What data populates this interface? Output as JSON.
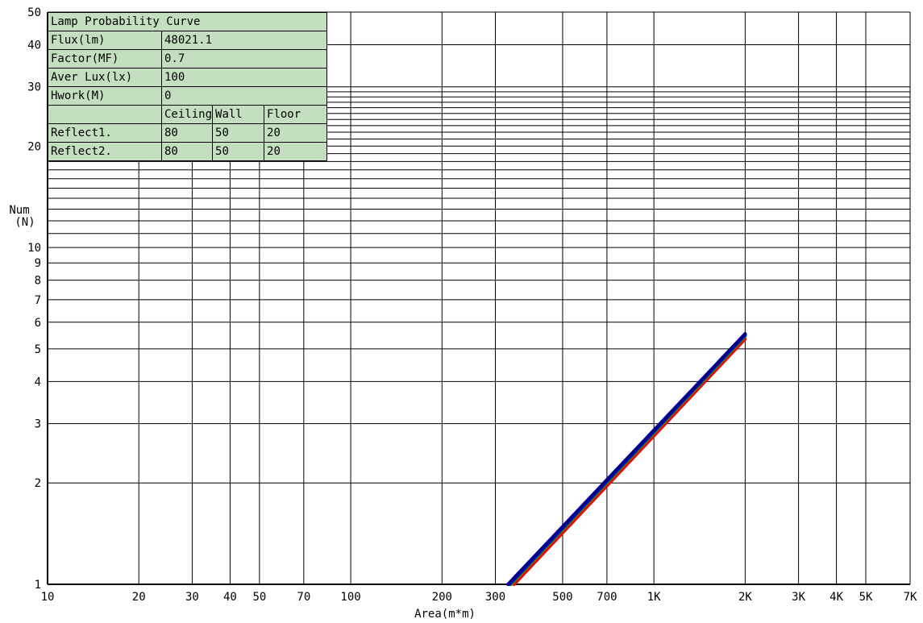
{
  "chart_data": {
    "type": "line",
    "xlabel": "Area(m*m)",
    "ylabel_line1": "Num",
    "ylabel_line2": "(N)",
    "x_scale": "log",
    "y_scale": "log",
    "xlim": [
      10,
      7000
    ],
    "ylim": [
      1,
      50
    ],
    "x_tick_values": [
      10,
      20,
      30,
      40,
      50,
      70,
      100,
      200,
      300,
      500,
      700,
      1000,
      2000,
      3000,
      4000,
      5000,
      7000
    ],
    "x_tick_labels": [
      "10",
      "20",
      "30",
      "40",
      "50",
      "70",
      "100",
      "200",
      "300",
      "500",
      "700",
      "1K",
      "2K",
      "3K",
      "4K",
      "5K",
      "7K"
    ],
    "y_tick_values": [
      1,
      2,
      3,
      4,
      5,
      6,
      7,
      8,
      9,
      10,
      20,
      30,
      40,
      50
    ],
    "y_tick_labels": [
      "1",
      "2",
      "3",
      "4",
      "5",
      "6",
      "7",
      "8",
      "9",
      "10",
      "20",
      "30",
      "40",
      "50"
    ],
    "y_minor_grid": [
      11,
      12,
      13,
      14,
      15,
      16,
      17,
      18,
      19,
      21,
      22,
      23,
      24,
      25,
      26,
      27,
      28,
      29
    ],
    "grid": true,
    "series": [
      {
        "color": "#ff0000",
        "x": [
          346,
          2000
        ],
        "y": [
          1,
          5.35
        ]
      },
      {
        "color": "#00a000",
        "x": [
          338,
          2000
        ],
        "y": [
          1,
          5.45
        ]
      },
      {
        "color": "#0000ff",
        "x": [
          334,
          2000
        ],
        "y": [
          1,
          5.5
        ]
      },
      {
        "color": "#000080",
        "x": [
          330,
          2000
        ],
        "y": [
          1,
          5.55
        ]
      }
    ]
  },
  "info_table": {
    "title": "Lamp Probability Curve",
    "rows": [
      {
        "label": "Flux(lm)",
        "value": "48021.1"
      },
      {
        "label": "Factor(MF)",
        "value": "0.7"
      },
      {
        "label": "Aver Lux(lx)",
        "value": "100"
      },
      {
        "label": "Hwork(M)",
        "value": "0"
      }
    ],
    "reflect_headers": [
      "Ceiling",
      "Wall",
      "Floor"
    ],
    "reflect_rows": [
      {
        "label": "Reflect1.",
        "ceiling": "80",
        "wall": "50",
        "floor": "20"
      },
      {
        "label": "Reflect2.",
        "ceiling": "80",
        "wall": "50",
        "floor": "20"
      }
    ],
    "background_color": "#c4dfbf"
  }
}
